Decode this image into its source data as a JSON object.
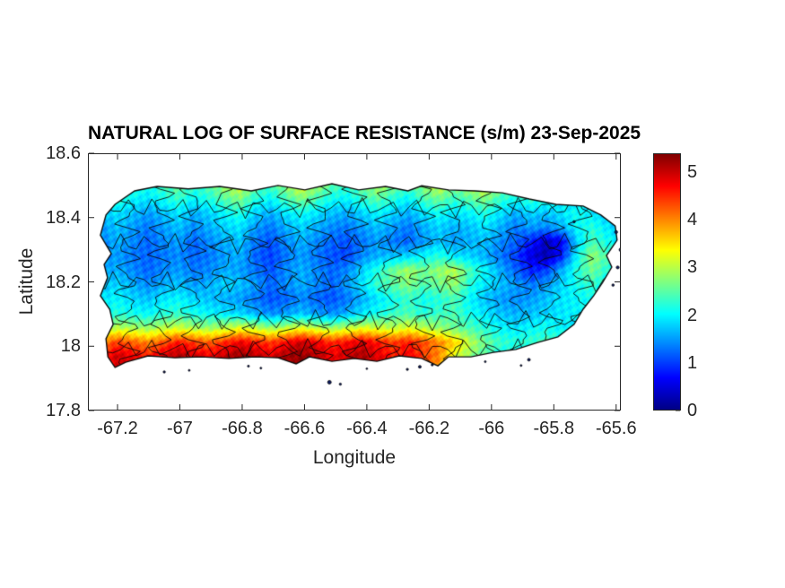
{
  "figure": {
    "title": "NATURAL LOG OF SURFACE RESISTANCE (s/m) 23-Sep-2025",
    "background": "#ffffff",
    "axis_color": "#262626",
    "title_color": "#000000"
  },
  "axes": {
    "xlabel": "Longitude",
    "ylabel": "Latitude",
    "xlim": [
      -67.295,
      -65.585
    ],
    "ylim": [
      17.8,
      18.6
    ],
    "xticks": [
      {
        "value": -67.2,
        "label": "-67.2"
      },
      {
        "value": -67.0,
        "label": "-67"
      },
      {
        "value": -66.8,
        "label": "-66.8"
      },
      {
        "value": -66.6,
        "label": "-66.6"
      },
      {
        "value": -66.4,
        "label": "-66.4"
      },
      {
        "value": -66.2,
        "label": "-66.2"
      },
      {
        "value": -66.0,
        "label": "-66"
      },
      {
        "value": -65.8,
        "label": "-65.8"
      },
      {
        "value": -65.6,
        "label": "-65.6"
      }
    ],
    "yticks": [
      {
        "value": 18.6,
        "label": "18.6"
      },
      {
        "value": 18.4,
        "label": "18.4"
      },
      {
        "value": 18.2,
        "label": "18.2"
      },
      {
        "value": 18.0,
        "label": "18"
      },
      {
        "value": 17.8,
        "label": "17.8"
      }
    ]
  },
  "colorbar": {
    "min": 0,
    "max": 5.39,
    "ticks": [
      {
        "value": 0,
        "label": "0"
      },
      {
        "value": 1,
        "label": "1"
      },
      {
        "value": 2,
        "label": "2"
      },
      {
        "value": 3,
        "label": "3"
      },
      {
        "value": 4,
        "label": "4"
      },
      {
        "value": 5,
        "label": "5"
      }
    ],
    "gradient": [
      {
        "stop": 0.0,
        "color": "#000084"
      },
      {
        "stop": 0.125,
        "color": "#0000ff"
      },
      {
        "stop": 0.375,
        "color": "#00ffff"
      },
      {
        "stop": 0.625,
        "color": "#ffff00"
      },
      {
        "stop": 0.875,
        "color": "#ff0000"
      },
      {
        "stop": 1.0,
        "color": "#800000"
      }
    ]
  },
  "chart_data": {
    "type": "heatmap",
    "title": "NATURAL LOG OF SURFACE RESISTANCE (s/m) 23-Sep-2025",
    "xlabel": "Longitude",
    "ylabel": "Latitude",
    "colormap": "jet",
    "value_range": [
      0,
      5.39
    ],
    "region": "Puerto Rico",
    "grid": {
      "lon_start": -67.3,
      "lon_end": -65.58,
      "lat_start": 18.55,
      "lat_end": 17.88,
      "ncols": 36,
      "nrows": 16,
      "values": [
        [
          2.0,
          2.2,
          2.3,
          2.2,
          2.1,
          2.3,
          2.5,
          2.3,
          2.4,
          2.7,
          3.0,
          2.5,
          2.3,
          2.7,
          3.1,
          2.8,
          2.4,
          2.3,
          2.5,
          2.8,
          2.6,
          2.3,
          2.7,
          3.0,
          2.6,
          2.8,
          3.1,
          2.7,
          2.4,
          2.6,
          2.5,
          2.7,
          2.9,
          2.6,
          2.3,
          2.1
        ],
        [
          2.0,
          2.2,
          2.4,
          2.3,
          2.1,
          2.4,
          2.6,
          2.3,
          2.5,
          2.9,
          3.2,
          2.6,
          2.4,
          2.8,
          3.3,
          2.9,
          2.5,
          2.3,
          2.6,
          3.0,
          2.7,
          2.4,
          2.8,
          3.2,
          2.7,
          3.0,
          3.3,
          2.8,
          2.5,
          2.8,
          2.6,
          2.9,
          3.1,
          2.7,
          2.4,
          2.2
        ],
        [
          1.8,
          2.0,
          2.2,
          2.0,
          1.9,
          2.1,
          2.3,
          2.0,
          2.2,
          2.5,
          2.7,
          2.2,
          2.0,
          2.4,
          2.7,
          2.4,
          2.1,
          2.0,
          2.3,
          2.5,
          2.2,
          2.0,
          2.4,
          2.6,
          2.3,
          2.5,
          2.7,
          2.3,
          2.1,
          2.3,
          2.2,
          2.0,
          1.7,
          2.2,
          2.1,
          2.0
        ],
        [
          1.5,
          1.7,
          1.9,
          1.7,
          1.5,
          1.7,
          1.9,
          1.6,
          1.8,
          2.0,
          2.2,
          1.8,
          1.6,
          1.9,
          2.1,
          1.9,
          1.7,
          1.6,
          1.8,
          2.0,
          1.8,
          1.6,
          1.9,
          2.1,
          1.9,
          2.0,
          2.2,
          1.9,
          1.6,
          1.8,
          1.7,
          1.9,
          2.1,
          1.9,
          1.7,
          1.8
        ],
        [
          1.4,
          1.5,
          1.7,
          1.5,
          1.3,
          1.5,
          1.7,
          1.4,
          1.6,
          1.8,
          1.9,
          1.5,
          1.3,
          1.6,
          1.8,
          1.6,
          1.4,
          1.3,
          1.5,
          1.7,
          1.5,
          1.3,
          1.6,
          1.8,
          1.6,
          1.7,
          1.9,
          1.6,
          1.3,
          1.5,
          1.4,
          1.6,
          2.0,
          2.2,
          1.9,
          1.7
        ],
        [
          1.3,
          1.4,
          1.6,
          1.4,
          1.2,
          1.4,
          1.5,
          1.2,
          1.4,
          1.6,
          1.7,
          1.3,
          1.1,
          1.4,
          1.6,
          1.4,
          1.2,
          1.1,
          1.3,
          1.5,
          1.3,
          1.2,
          1.5,
          1.7,
          1.5,
          1.6,
          1.7,
          1.4,
          1.2,
          0.8,
          0.4,
          0.6,
          1.8,
          2.4,
          2.1,
          1.9
        ],
        [
          1.3,
          1.4,
          1.5,
          1.3,
          1.2,
          1.3,
          1.4,
          1.2,
          1.3,
          1.5,
          1.6,
          1.2,
          1.0,
          1.3,
          1.5,
          1.3,
          1.1,
          1.0,
          1.4,
          1.6,
          1.7,
          1.8,
          2.0,
          2.2,
          1.9,
          1.8,
          1.6,
          1.3,
          1.0,
          0.5,
          0.2,
          0.8,
          2.0,
          2.8,
          2.4,
          2.1
        ],
        [
          1.4,
          1.5,
          1.6,
          1.4,
          1.2,
          1.4,
          1.5,
          1.3,
          1.4,
          1.6,
          1.5,
          1.3,
          1.1,
          1.4,
          1.6,
          1.4,
          1.2,
          1.4,
          1.8,
          2.2,
          2.6,
          2.9,
          2.6,
          2.8,
          3.0,
          2.4,
          2.0,
          1.6,
          1.2,
          0.8,
          1.0,
          1.6,
          2.2,
          2.6,
          2.2,
          2.0
        ],
        [
          1.6,
          1.7,
          1.8,
          1.6,
          1.4,
          1.6,
          1.7,
          1.5,
          1.6,
          1.8,
          1.7,
          1.5,
          1.2,
          1.4,
          1.6,
          1.4,
          1.2,
          1.5,
          1.9,
          2.3,
          2.5,
          2.7,
          2.4,
          2.6,
          2.8,
          2.2,
          1.9,
          1.7,
          1.5,
          1.3,
          1.5,
          1.8,
          2.1,
          2.3,
          2.0,
          1.9
        ],
        [
          1.8,
          1.9,
          2.0,
          1.8,
          1.7,
          1.9,
          2.0,
          1.8,
          1.7,
          1.6,
          1.5,
          1.3,
          1.1,
          1.2,
          1.4,
          1.2,
          1.1,
          1.3,
          1.6,
          1.9,
          2.1,
          2.3,
          2.1,
          2.2,
          2.4,
          2.0,
          1.7,
          1.5,
          1.4,
          1.5,
          1.7,
          1.9,
          2.0,
          2.1,
          1.9,
          1.8
        ],
        [
          2.0,
          2.1,
          2.2,
          2.1,
          2.0,
          2.2,
          2.3,
          2.1,
          2.0,
          1.9,
          1.8,
          1.6,
          1.4,
          1.5,
          1.7,
          1.5,
          1.4,
          1.6,
          1.9,
          2.1,
          2.3,
          2.4,
          2.2,
          2.3,
          2.4,
          2.1,
          1.9,
          1.7,
          1.6,
          1.7,
          1.8,
          1.9,
          2.0,
          2.0,
          1.9,
          1.8
        ],
        [
          2.6,
          2.8,
          3.0,
          2.9,
          2.8,
          3.0,
          3.1,
          2.9,
          2.8,
          3.0,
          3.2,
          3.0,
          2.8,
          3.0,
          3.2,
          3.0,
          2.8,
          3.0,
          3.2,
          3.1,
          3.0,
          3.2,
          3.0,
          2.8,
          2.6,
          2.4,
          2.2,
          2.0,
          1.9,
          2.0,
          2.1,
          2.0,
          1.9,
          1.8,
          1.7,
          1.6
        ],
        [
          3.6,
          4.0,
          4.4,
          4.2,
          4.0,
          4.3,
          4.6,
          4.4,
          4.2,
          4.5,
          4.8,
          4.6,
          4.4,
          4.7,
          5.0,
          4.8,
          4.5,
          4.7,
          4.9,
          4.6,
          4.4,
          4.6,
          4.3,
          4.0,
          3.6,
          3.0,
          2.6,
          2.3,
          2.2,
          2.3,
          2.4,
          2.2,
          2.0,
          1.9,
          1.8,
          1.7
        ],
        [
          4.2,
          4.6,
          5.0,
          4.8,
          4.6,
          4.9,
          5.2,
          5.0,
          4.8,
          5.1,
          5.3,
          5.1,
          4.9,
          5.2,
          5.3,
          5.1,
          4.8,
          5.0,
          5.2,
          4.9,
          4.6,
          4.8,
          4.4,
          4.0,
          3.2,
          2.8,
          2.4,
          2.1,
          2.0,
          2.1,
          2.2,
          2.0,
          1.9,
          1.8,
          1.7,
          1.6
        ],
        [
          4.0,
          4.4,
          4.8,
          4.6,
          4.4,
          4.7,
          5.0,
          4.8,
          4.6,
          4.9,
          5.1,
          4.9,
          4.7,
          5.0,
          5.1,
          4.9,
          4.6,
          4.8,
          5.0,
          4.7,
          4.4,
          4.6,
          4.2,
          3.8,
          3.0,
          2.6,
          2.2,
          2.0,
          1.9,
          2.0,
          2.1,
          1.9,
          1.8,
          1.7,
          1.6,
          1.5
        ],
        [
          3.8,
          4.2,
          4.6,
          4.4,
          4.2,
          4.5,
          4.8,
          4.6,
          4.4,
          4.7,
          4.9,
          4.7,
          4.5,
          4.8,
          4.9,
          4.7,
          4.4,
          4.6,
          4.8,
          4.5,
          4.2,
          4.4,
          4.0,
          3.6,
          2.8,
          2.4,
          2.0,
          1.9,
          1.8,
          1.9,
          2.0,
          1.8,
          1.7,
          1.6,
          1.5,
          1.4
        ]
      ]
    },
    "island_outline": [
      [
        -67.255,
        18.345
      ],
      [
        -67.237,
        18.408
      ],
      [
        -67.208,
        18.441
      ],
      [
        -67.145,
        18.483
      ],
      [
        -67.073,
        18.497
      ],
      [
        -66.973,
        18.489
      ],
      [
        -66.872,
        18.497
      ],
      [
        -66.771,
        18.483
      ],
      [
        -66.685,
        18.5
      ],
      [
        -66.599,
        18.486
      ],
      [
        -66.512,
        18.505
      ],
      [
        -66.426,
        18.486
      ],
      [
        -66.34,
        18.497
      ],
      [
        -66.268,
        18.483
      ],
      [
        -66.224,
        18.499
      ],
      [
        -66.138,
        18.486
      ],
      [
        -66.052,
        18.483
      ],
      [
        -65.965,
        18.477
      ],
      [
        -65.879,
        18.458
      ],
      [
        -65.793,
        18.441
      ],
      [
        -65.706,
        18.436
      ],
      [
        -65.649,
        18.408
      ],
      [
        -65.603,
        18.374
      ],
      [
        -65.597,
        18.33
      ],
      [
        -65.631,
        18.282
      ],
      [
        -65.614,
        18.246
      ],
      [
        -65.643,
        18.199
      ],
      [
        -65.672,
        18.157
      ],
      [
        -65.706,
        18.115
      ],
      [
        -65.735,
        18.068
      ],
      [
        -65.787,
        18.029
      ],
      [
        -65.85,
        18.012
      ],
      [
        -65.922,
        17.99
      ],
      [
        -65.994,
        17.981
      ],
      [
        -66.066,
        17.967
      ],
      [
        -66.138,
        17.967
      ],
      [
        -66.172,
        17.939
      ],
      [
        -66.224,
        17.962
      ],
      [
        -66.296,
        17.97
      ],
      [
        -66.368,
        17.953
      ],
      [
        -66.44,
        17.962
      ],
      [
        -66.512,
        17.953
      ],
      [
        -66.584,
        17.967
      ],
      [
        -66.627,
        17.945
      ],
      [
        -66.685,
        17.964
      ],
      [
        -66.757,
        17.967
      ],
      [
        -66.843,
        17.962
      ],
      [
        -66.93,
        17.967
      ],
      [
        -67.016,
        17.964
      ],
      [
        -67.102,
        17.97
      ],
      [
        -67.174,
        17.95
      ],
      [
        -67.208,
        17.934
      ],
      [
        -67.231,
        17.967
      ],
      [
        -67.237,
        18.023
      ],
      [
        -67.214,
        18.068
      ],
      [
        -67.225,
        18.115
      ],
      [
        -67.255,
        18.157
      ],
      [
        -67.232,
        18.213
      ],
      [
        -67.243,
        18.254
      ],
      [
        -67.22,
        18.288
      ]
    ],
    "municipality_boundaries": {
      "vertical_lons": [
        -67.17,
        -67.06,
        -66.96,
        -66.86,
        -66.76,
        -66.655,
        -66.55,
        -66.44,
        -66.33,
        -66.225,
        -66.12,
        -66.01,
        -65.91,
        -65.81,
        -65.71
      ],
      "horizontal_lats": [
        18.43,
        18.32,
        18.2,
        18.08,
        17.99
      ]
    },
    "islets": [
      [
        -67.05,
        17.92,
        1.2
      ],
      [
        -66.97,
        17.925,
        1.0
      ],
      [
        -66.78,
        17.938,
        1.1
      ],
      [
        -66.74,
        17.932,
        1.0
      ],
      [
        -66.52,
        17.888,
        2.0
      ],
      [
        -66.485,
        17.882,
        1.2
      ],
      [
        -66.4,
        17.93,
        0.9
      ],
      [
        -66.27,
        17.928,
        1.2
      ],
      [
        -66.23,
        17.936,
        1.5
      ],
      [
        -66.19,
        17.942,
        1.2
      ],
      [
        -66.02,
        17.952,
        1.0
      ],
      [
        -65.88,
        17.958,
        1.5
      ],
      [
        -65.905,
        17.94,
        1.0
      ],
      [
        -65.735,
        18.387,
        1.3
      ],
      [
        -65.6,
        18.355,
        1.6
      ],
      [
        -65.585,
        18.3,
        1.9
      ],
      [
        -65.595,
        18.245,
        1.6
      ],
      [
        -65.61,
        18.19,
        1.3
      ]
    ]
  }
}
